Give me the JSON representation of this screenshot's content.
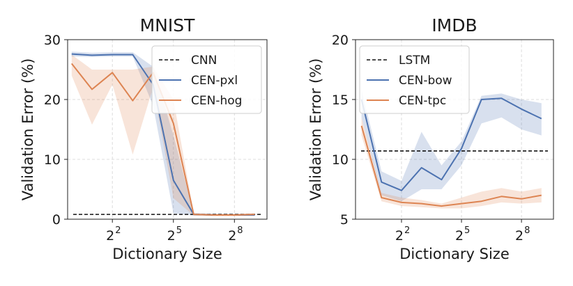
{
  "chart_data": [
    {
      "type": "line",
      "title": "MNIST",
      "xlabel": "Dictionary Size",
      "ylabel": "Validation Error (%)",
      "x_scale": "log2",
      "x_tick_exponents": [
        2,
        5,
        8
      ],
      "x_tick_base": "2",
      "xlim_log2": [
        -0.2,
        9.6
      ],
      "ylim": [
        0,
        30
      ],
      "y_ticks": [
        0,
        10,
        20,
        30
      ],
      "grid": true,
      "legend_position": "top-right",
      "reference": {
        "name": "CNN",
        "value": 0.8,
        "style": "dashed",
        "color": "#111111"
      },
      "series": [
        {
          "name": "CEN-pxl",
          "color": "#4c72b0",
          "x_log2": [
            0,
            1,
            2,
            3,
            4,
            5,
            6,
            7,
            8,
            9
          ],
          "values": [
            27.6,
            27.4,
            27.5,
            27.5,
            22.5,
            6.5,
            0.8,
            0.7,
            0.7,
            0.7
          ],
          "lower": [
            27.2,
            27.1,
            27.2,
            27.2,
            19.0,
            1.0,
            0.6,
            0.6,
            0.6,
            0.6
          ],
          "upper": [
            28.0,
            27.8,
            27.9,
            27.9,
            25.5,
            14.0,
            1.0,
            0.9,
            0.9,
            0.9
          ]
        },
        {
          "name": "CEN-hog",
          "color": "#dd8452",
          "x_log2": [
            0,
            1,
            2,
            3,
            4,
            5,
            6,
            7,
            8,
            9
          ],
          "values": [
            26.0,
            21.7,
            24.5,
            19.8,
            24.5,
            16.0,
            0.8,
            0.7,
            0.7,
            0.8
          ],
          "lower": [
            24.0,
            15.8,
            22.5,
            10.8,
            22.0,
            3.5,
            0.6,
            0.5,
            0.5,
            0.6
          ],
          "upper": [
            27.5,
            25.0,
            25.0,
            25.0,
            25.5,
            20.0,
            1.0,
            0.9,
            0.9,
            1.0
          ]
        }
      ]
    },
    {
      "type": "line",
      "title": "IMDB",
      "xlabel": "Dictionary Size",
      "ylabel": "Validation Error (%)",
      "x_scale": "log2",
      "x_tick_exponents": [
        2,
        5,
        8
      ],
      "x_tick_base": "2",
      "xlim_log2": [
        -0.3,
        9.6
      ],
      "ylim": [
        5,
        20
      ],
      "y_ticks": [
        5,
        10,
        15,
        20
      ],
      "grid": true,
      "legend_position": "top-left",
      "reference": {
        "name": "LSTM",
        "value": 10.7,
        "style": "dashed",
        "color": "#111111"
      },
      "series": [
        {
          "name": "CEN-bow",
          "color": "#4c72b0",
          "x_log2": [
            0,
            1,
            2,
            3,
            4,
            5,
            6,
            7,
            8,
            9
          ],
          "values": [
            15.0,
            8.1,
            7.4,
            9.3,
            8.3,
            10.9,
            15.0,
            15.1,
            14.2,
            13.4
          ],
          "lower": [
            13.5,
            7.0,
            6.5,
            7.5,
            7.5,
            9.5,
            13.0,
            13.5,
            12.5,
            12.0
          ],
          "upper": [
            15.8,
            9.0,
            8.2,
            12.3,
            9.5,
            11.5,
            15.3,
            15.5,
            15.0,
            14.7
          ]
        },
        {
          "name": "CEN-tpc",
          "color": "#dd8452",
          "x_log2": [
            0,
            1,
            2,
            3,
            4,
            5,
            6,
            7,
            8,
            9
          ],
          "values": [
            12.8,
            6.8,
            6.4,
            6.3,
            6.1,
            6.3,
            6.5,
            6.9,
            6.7,
            7.0
          ],
          "lower": [
            12.0,
            6.5,
            6.1,
            6.0,
            5.9,
            5.9,
            6.1,
            6.4,
            6.3,
            6.4
          ],
          "upper": [
            13.5,
            7.2,
            6.8,
            6.6,
            6.3,
            6.8,
            7.3,
            7.6,
            7.3,
            7.6
          ]
        }
      ]
    }
  ]
}
